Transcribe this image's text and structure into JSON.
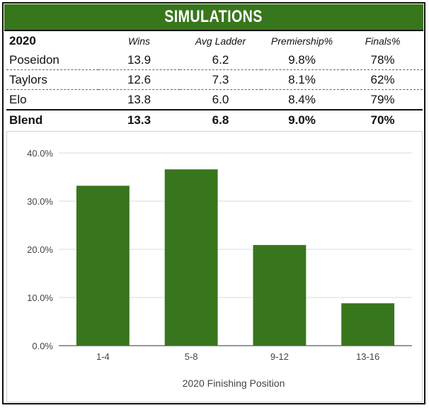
{
  "header": {
    "title": "SIMULATIONS"
  },
  "table": {
    "year": "2020",
    "columns": [
      "Wins",
      "Avg Ladder",
      "Premiership%",
      "Finals%"
    ],
    "rows": [
      {
        "name": "Poseidon",
        "wins": "13.9",
        "avg_ladder": "6.2",
        "premiership": "9.8%",
        "finals": "78%"
      },
      {
        "name": "Taylors",
        "wins": "12.6",
        "avg_ladder": "7.3",
        "premiership": "8.1%",
        "finals": "62%"
      },
      {
        "name": "Elo",
        "wins": "13.8",
        "avg_ladder": "6.0",
        "premiership": "8.4%",
        "finals": "79%"
      }
    ],
    "blend": {
      "name": "Blend",
      "wins": "13.3",
      "avg_ladder": "6.8",
      "premiership": "9.0%",
      "finals": "70%"
    }
  },
  "chart_data": {
    "type": "bar",
    "categories": [
      "1-4",
      "5-8",
      "9-12",
      "13-16"
    ],
    "values": [
      33.2,
      36.6,
      20.9,
      8.8
    ],
    "ylim": [
      0,
      40
    ],
    "yticks": [
      0,
      10,
      20,
      30,
      40
    ],
    "ytick_labels": [
      "0.0%",
      "10.0%",
      "20.0%",
      "30.0%",
      "40.0%"
    ],
    "xlabel": "2020 Finishing Position",
    "ylabel": "",
    "grid": true,
    "bar_color": "#38761d"
  }
}
